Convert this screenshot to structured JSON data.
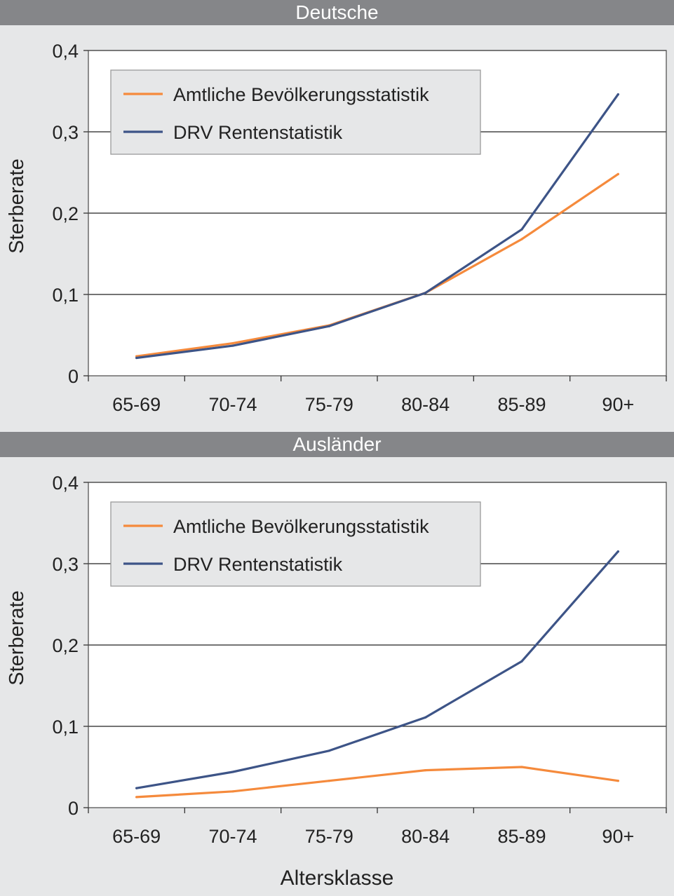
{
  "chart_data": [
    {
      "type": "line",
      "title": "Deutsche",
      "ylabel": "Sterberate",
      "xlabel": "",
      "categories": [
        "65-69",
        "70-74",
        "75-79",
        "80-84",
        "85-89",
        "90+"
      ],
      "ylim": [
        0,
        0.4
      ],
      "yticks": [
        "0",
        "0,1",
        "0,2",
        "0,3",
        "0,4"
      ],
      "grid": true,
      "legend": "top-left",
      "series": [
        {
          "name": "Amtliche Bevölkerungsstatistik",
          "color": "#f58a3c",
          "values": [
            0.024,
            0.04,
            0.062,
            0.102,
            0.168,
            0.248
          ]
        },
        {
          "name": "DRV Rentenstatistik",
          "color": "#3d5487",
          "values": [
            0.022,
            0.037,
            0.061,
            0.102,
            0.18,
            0.346
          ]
        }
      ]
    },
    {
      "type": "line",
      "title": "Ausländer",
      "ylabel": "Sterberate",
      "xlabel": "Altersklasse",
      "categories": [
        "65-69",
        "70-74",
        "75-79",
        "80-84",
        "85-89",
        "90+"
      ],
      "ylim": [
        0,
        0.4
      ],
      "yticks": [
        "0",
        "0,1",
        "0,2",
        "0,3",
        "0,4"
      ],
      "grid": true,
      "legend": "top-left",
      "series": [
        {
          "name": "Amtliche Bevölkerungsstatistik",
          "color": "#f58a3c",
          "values": [
            0.013,
            0.02,
            0.033,
            0.046,
            0.05,
            0.033
          ]
        },
        {
          "name": "DRV Rentenstatistik",
          "color": "#3d5487",
          "values": [
            0.024,
            0.044,
            0.07,
            0.111,
            0.18,
            0.315
          ]
        }
      ]
    }
  ]
}
